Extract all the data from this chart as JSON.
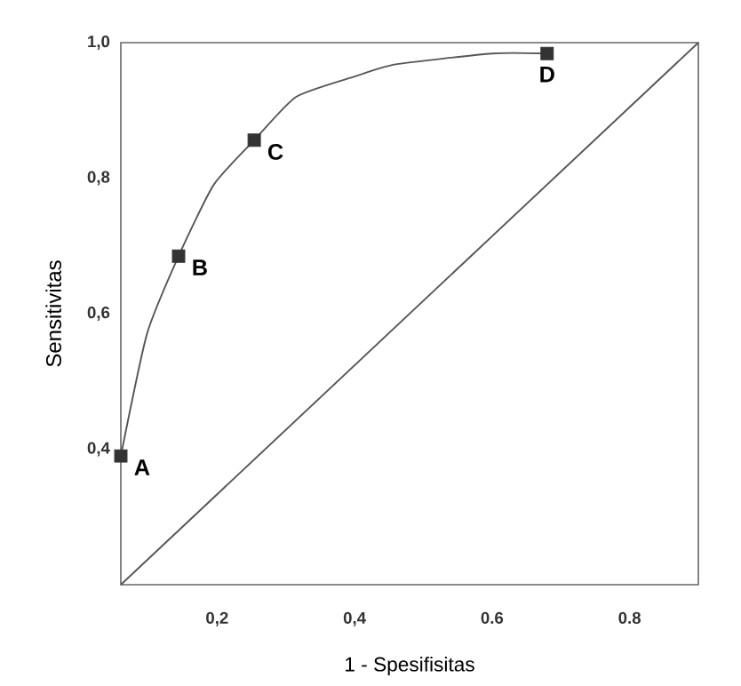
{
  "chart_data": {
    "type": "line",
    "xlabel": "1 - Spesifisitas",
    "ylabel": "Sensitivitas",
    "xlim": [
      0.06,
      0.9
    ],
    "ylim": [
      0.2,
      1.0
    ],
    "xticks": [
      {
        "value": 0.2,
        "label": "0,2"
      },
      {
        "value": 0.4,
        "label": "0,4"
      },
      {
        "value": 0.6,
        "label": "0.6"
      },
      {
        "value": 0.8,
        "label": "0.8"
      }
    ],
    "yticks": [
      {
        "value": 0.4,
        "label": "0,4"
      },
      {
        "value": 0.6,
        "label": "0,6"
      },
      {
        "value": 0.8,
        "label": "0,8"
      },
      {
        "value": 1.0,
        "label": "1,0"
      }
    ],
    "series": [
      {
        "color": "#555555",
        "x": [
          0.06,
          0.098,
          0.144,
          0.195,
          0.254,
          0.315,
          0.4,
          0.46,
          0.6,
          0.68
        ],
        "values": [
          0.39,
          0.57,
          0.685,
          0.79,
          0.856,
          0.92,
          0.95,
          0.968,
          0.984,
          0.984
        ]
      },
      {
        "color": "#555555",
        "x": [
          0.06,
          0.9
        ],
        "values": [
          0.2,
          1.0
        ]
      },
      {
        "type": "scatter",
        "color": "#333333",
        "marker": "square",
        "x": [
          0.06,
          0.144,
          0.254,
          0.68
        ],
        "values": [
          0.39,
          0.685,
          0.856,
          0.984
        ]
      }
    ],
    "annotations": [
      {
        "text": "A",
        "x": 0.06,
        "y": 0.39
      },
      {
        "text": "B",
        "x": 0.144,
        "y": 0.685
      },
      {
        "text": "C",
        "x": 0.254,
        "y": 0.856
      },
      {
        "text": "D",
        "x": 0.68,
        "y": 0.984
      }
    ]
  }
}
